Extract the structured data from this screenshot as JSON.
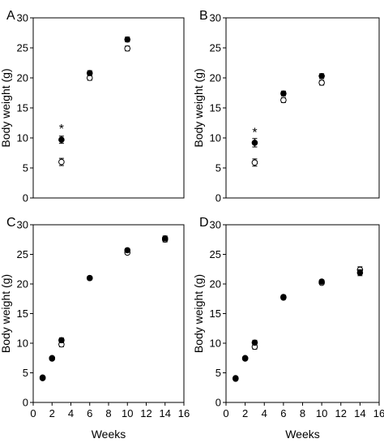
{
  "chart_data": [
    {
      "panel_label": "A",
      "type": "scatter",
      "xlabel": "",
      "ylabel": "Body weight (g)",
      "xlim": [
        0,
        16
      ],
      "ylim": [
        0,
        30
      ],
      "xticks": [],
      "yticks": [
        0,
        5,
        10,
        15,
        20,
        25,
        30
      ],
      "grid": false,
      "series": [
        {
          "marker": "filled",
          "color": "#000000",
          "points": [
            {
              "x": 3,
              "y": 9.7,
              "err": 0.6
            },
            {
              "x": 6,
              "y": 20.8,
              "err": 0.4
            },
            {
              "x": 10,
              "y": 26.4,
              "err": 0.4
            }
          ]
        },
        {
          "marker": "open",
          "color": "#000000",
          "points": [
            {
              "x": 3,
              "y": 6.0,
              "err": 0.6
            },
            {
              "x": 6,
              "y": 20.0,
              "err": 0.4
            },
            {
              "x": 10,
              "y": 24.9,
              "err": 0.4
            }
          ]
        }
      ],
      "annotations": [
        {
          "text": "*",
          "x": 3,
          "y": 11.6
        }
      ]
    },
    {
      "panel_label": "B",
      "type": "scatter",
      "xlabel": "",
      "ylabel": "Body weight (g)",
      "xlim": [
        0,
        16
      ],
      "ylim": [
        0,
        30
      ],
      "xticks": [],
      "yticks": [
        0,
        5,
        10,
        15,
        20,
        25,
        30
      ],
      "grid": false,
      "series": [
        {
          "marker": "filled",
          "color": "#000000",
          "points": [
            {
              "x": 3,
              "y": 9.2,
              "err": 0.7
            },
            {
              "x": 6,
              "y": 17.4,
              "err": 0.4
            },
            {
              "x": 10,
              "y": 20.3,
              "err": 0.4
            }
          ]
        },
        {
          "marker": "open",
          "color": "#000000",
          "points": [
            {
              "x": 3,
              "y": 5.9,
              "err": 0.6
            },
            {
              "x": 6,
              "y": 16.3,
              "err": 0.4
            },
            {
              "x": 10,
              "y": 19.2,
              "err": 0.4
            }
          ]
        }
      ],
      "annotations": [
        {
          "text": "*",
          "x": 3,
          "y": 11.0
        }
      ]
    },
    {
      "panel_label": "C",
      "type": "scatter",
      "xlabel": "Weeks",
      "ylabel": "Body weight (g)",
      "xlim": [
        0,
        16
      ],
      "ylim": [
        0,
        30
      ],
      "xticks": [
        0,
        2,
        4,
        6,
        8,
        10,
        12,
        14,
        16
      ],
      "yticks": [
        0,
        5,
        10,
        15,
        20,
        25,
        30
      ],
      "grid": false,
      "series": [
        {
          "marker": "filled",
          "color": "#000000",
          "points": [
            {
              "x": 1,
              "y": 4.2,
              "err": 0.2
            },
            {
              "x": 2,
              "y": 7.5,
              "err": 0.2
            },
            {
              "x": 3,
              "y": 10.5,
              "err": 0.4
            },
            {
              "x": 6,
              "y": 21.0,
              "err": 0.3
            },
            {
              "x": 10,
              "y": 25.7,
              "err": 0.3
            },
            {
              "x": 14,
              "y": 27.7,
              "err": 0.4
            }
          ]
        },
        {
          "marker": "open",
          "color": "#000000",
          "points": [
            {
              "x": 1,
              "y": 4.1,
              "err": 0.2
            },
            {
              "x": 2,
              "y": 7.4,
              "err": 0.2
            },
            {
              "x": 3,
              "y": 9.8,
              "err": 0.4
            },
            {
              "x": 6,
              "y": 21.0,
              "err": 0.3
            },
            {
              "x": 10,
              "y": 25.3,
              "err": 0.3
            },
            {
              "x": 14,
              "y": 27.5,
              "err": 0.4
            }
          ]
        }
      ],
      "annotations": []
    },
    {
      "panel_label": "D",
      "type": "scatter",
      "xlabel": "Weeks",
      "ylabel": "Body weight (g)",
      "xlim": [
        0,
        16
      ],
      "ylim": [
        0,
        30
      ],
      "xticks": [
        0,
        2,
        4,
        6,
        8,
        10,
        12,
        14,
        16
      ],
      "yticks": [
        0,
        5,
        10,
        15,
        20,
        25,
        30
      ],
      "grid": false,
      "series": [
        {
          "marker": "filled",
          "color": "#000000",
          "points": [
            {
              "x": 1,
              "y": 4.1,
              "err": 0.2
            },
            {
              "x": 2,
              "y": 7.5,
              "err": 0.2
            },
            {
              "x": 3,
              "y": 10.1,
              "err": 0.4
            },
            {
              "x": 6,
              "y": 17.8,
              "err": 0.3
            },
            {
              "x": 10,
              "y": 20.4,
              "err": 0.3
            },
            {
              "x": 14,
              "y": 21.9,
              "err": 0.5
            }
          ]
        },
        {
          "marker": "open",
          "color": "#000000",
          "points": [
            {
              "x": 1,
              "y": 4.0,
              "err": 0.2
            },
            {
              "x": 2,
              "y": 7.4,
              "err": 0.2
            },
            {
              "x": 3,
              "y": 9.4,
              "err": 0.4
            },
            {
              "x": 6,
              "y": 17.7,
              "err": 0.3
            },
            {
              "x": 10,
              "y": 20.2,
              "err": 0.3
            },
            {
              "x": 14,
              "y": 22.4,
              "err": 0.5
            }
          ]
        }
      ],
      "annotations": []
    }
  ]
}
